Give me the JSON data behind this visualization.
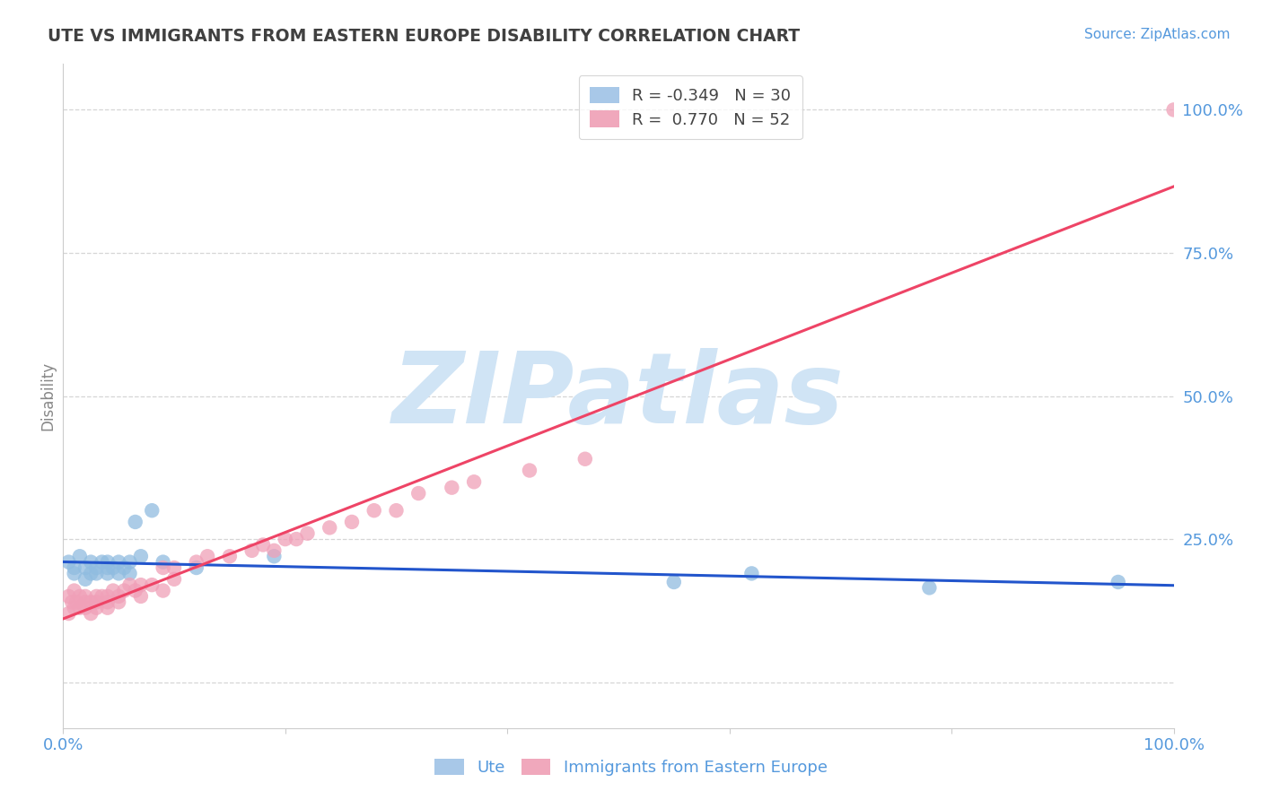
{
  "title": "UTE VS IMMIGRANTS FROM EASTERN EUROPE DISABILITY CORRELATION CHART",
  "source": "Source: ZipAtlas.com",
  "ylabel": "Disability",
  "xlim": [
    0,
    1.0
  ],
  "ylim": [
    -0.08,
    1.08
  ],
  "yticks": [
    0.0,
    0.25,
    0.5,
    0.75,
    1.0
  ],
  "ytick_labels": [
    "",
    "25.0%",
    "50.0%",
    "75.0%",
    "100.0%"
  ],
  "xticks": [
    0.0,
    0.2,
    0.4,
    0.6,
    0.8,
    1.0
  ],
  "xtick_labels": [
    "0.0%",
    "",
    "",
    "",
    "",
    "100.0%"
  ],
  "series_ute": {
    "color": "#90bce0",
    "line_color": "#2255cc",
    "x": [
      0.005,
      0.01,
      0.01,
      0.015,
      0.02,
      0.02,
      0.025,
      0.025,
      0.03,
      0.03,
      0.035,
      0.04,
      0.04,
      0.04,
      0.045,
      0.05,
      0.05,
      0.055,
      0.06,
      0.06,
      0.065,
      0.07,
      0.08,
      0.09,
      0.12,
      0.19,
      0.55,
      0.62,
      0.78,
      0.95
    ],
    "y": [
      0.21,
      0.2,
      0.19,
      0.22,
      0.2,
      0.18,
      0.19,
      0.21,
      0.19,
      0.2,
      0.21,
      0.19,
      0.2,
      0.21,
      0.2,
      0.19,
      0.21,
      0.2,
      0.19,
      0.21,
      0.28,
      0.22,
      0.3,
      0.21,
      0.2,
      0.22,
      0.175,
      0.19,
      0.165,
      0.175
    ]
  },
  "series_immigrants": {
    "color": "#f0a0b8",
    "line_color": "#ee4466",
    "x": [
      0.005,
      0.005,
      0.008,
      0.01,
      0.01,
      0.012,
      0.015,
      0.015,
      0.02,
      0.02,
      0.02,
      0.025,
      0.025,
      0.03,
      0.03,
      0.03,
      0.035,
      0.04,
      0.04,
      0.04,
      0.045,
      0.05,
      0.05,
      0.055,
      0.06,
      0.065,
      0.07,
      0.07,
      0.08,
      0.09,
      0.09,
      0.1,
      0.1,
      0.12,
      0.13,
      0.15,
      0.17,
      0.18,
      0.19,
      0.2,
      0.21,
      0.22,
      0.24,
      0.26,
      0.28,
      0.3,
      0.32,
      0.35,
      0.37,
      0.42,
      0.47,
      1.0
    ],
    "y": [
      0.15,
      0.12,
      0.14,
      0.13,
      0.16,
      0.14,
      0.13,
      0.15,
      0.13,
      0.14,
      0.15,
      0.14,
      0.12,
      0.15,
      0.13,
      0.14,
      0.15,
      0.14,
      0.13,
      0.15,
      0.16,
      0.15,
      0.14,
      0.16,
      0.17,
      0.16,
      0.15,
      0.17,
      0.17,
      0.16,
      0.2,
      0.18,
      0.2,
      0.21,
      0.22,
      0.22,
      0.23,
      0.24,
      0.23,
      0.25,
      0.25,
      0.26,
      0.27,
      0.28,
      0.3,
      0.3,
      0.33,
      0.34,
      0.35,
      0.37,
      0.39,
      1.0
    ]
  },
  "background_color": "#ffffff",
  "grid_color": "#cccccc",
  "title_color": "#404040",
  "axis_label_color": "#5599dd",
  "watermark_text": "ZIPatlas",
  "watermark_color": "#d0e4f5"
}
